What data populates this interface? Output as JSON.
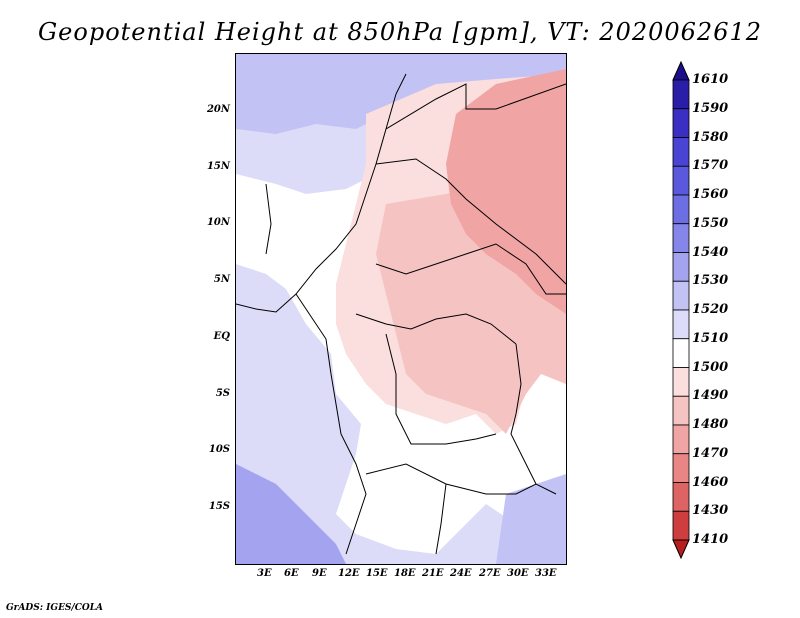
{
  "title": "Geopotential Height at 850hPa [gpm], VT: 2020062612",
  "credit": "GrADS: IGES/COLA",
  "axes": {
    "lat_labels": [
      "20N",
      "15N",
      "10N",
      "5N",
      "EQ",
      "5S",
      "10S",
      "15S"
    ],
    "lon_labels": [
      "3E",
      "6E",
      "9E",
      "12E",
      "15E",
      "18E",
      "21E",
      "24E",
      "27E",
      "30E",
      "33E"
    ]
  },
  "colorbar": {
    "labels": [
      "1610",
      "1590",
      "1580",
      "1570",
      "1560",
      "1550",
      "1540",
      "1530",
      "1520",
      "1510",
      "1500",
      "1490",
      "1480",
      "1470",
      "1460",
      "1430",
      "1410"
    ],
    "colors": [
      "#1c0f8c",
      "#2a1ea8",
      "#3a2fc2",
      "#4a44d4",
      "#5a59dd",
      "#6d6de4",
      "#8585ea",
      "#a3a3f0",
      "#c2c2f5",
      "#dcdcfa",
      "#ffffff",
      "#fbdede",
      "#f6c3c3",
      "#f0a4a4",
      "#e88686",
      "#de6363",
      "#cf3e3e",
      "#b81e1e"
    ]
  },
  "map_regions": {
    "ocean_west": "#dcdcf9",
    "north_blue": "#c2c2f5",
    "land_neutral": "#ffffff",
    "land_light_pink": "#fbdede",
    "land_pink": "#f6c3c3",
    "land_red": "#f0a4a4",
    "sw_deep_blue": "#a3a3f0"
  }
}
